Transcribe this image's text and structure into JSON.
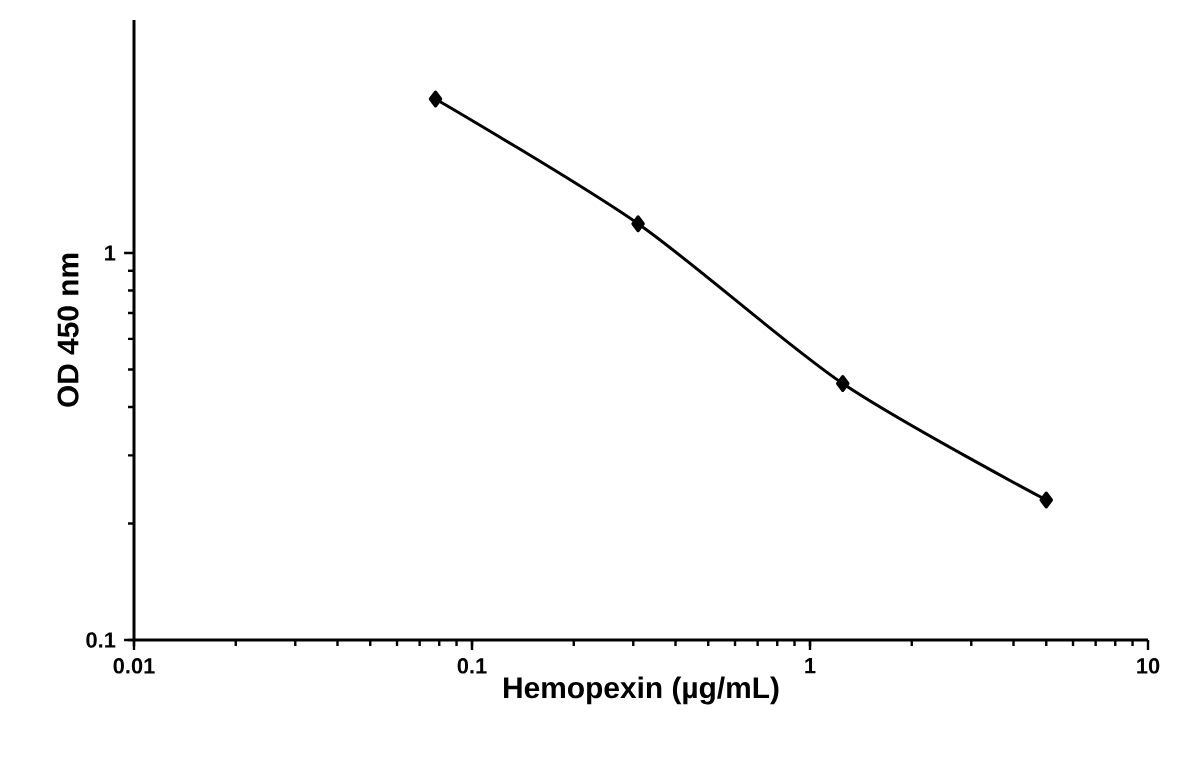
{
  "chart_data": {
    "type": "line",
    "xlabel": "Hemopexin (µg/mL)",
    "ylabel": "OD 450 nm",
    "x": [
      0.078,
      0.31,
      1.25,
      5
    ],
    "series": [
      {
        "color": "#000000",
        "values": [
          2.5,
          1.19,
          0.46,
          0.23
        ]
      }
    ],
    "log": "xy",
    "xlim": [
      0.01,
      10
    ],
    "ylim": [
      0.1,
      4
    ],
    "xticks": [
      0.01,
      0.1,
      1,
      10
    ],
    "yticks": [
      0.1,
      1
    ],
    "marker": "diamond",
    "line_style": "solid",
    "grid": false
  }
}
